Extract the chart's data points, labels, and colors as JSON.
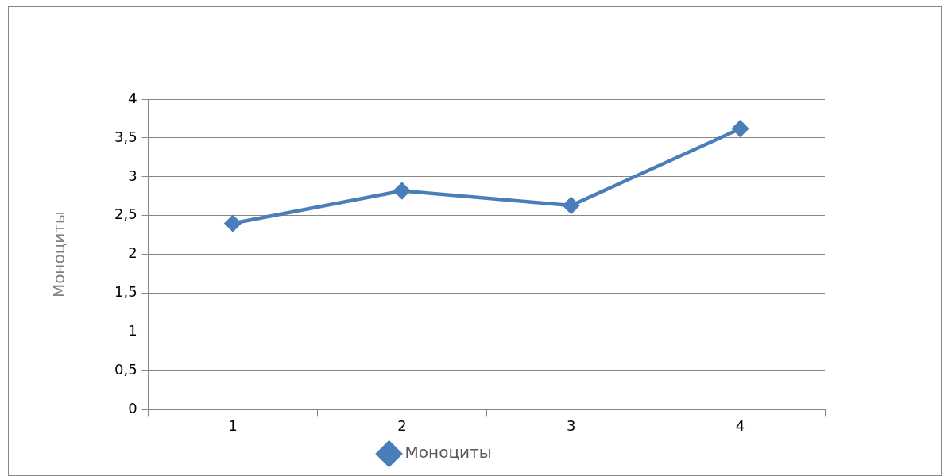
{
  "chart_data": {
    "type": "line",
    "ylabel": "Моноциты",
    "categories": [
      "1",
      "2",
      "3",
      "4"
    ],
    "series": [
      {
        "name": "Моноциты",
        "color": "#4a7ebb",
        "values": [
          2.4,
          2.82,
          2.63,
          3.62
        ]
      }
    ],
    "ylim": [
      0,
      4
    ],
    "yticks": [
      0,
      {
        "value": 0.5,
        "label": "0,5"
      },
      1,
      {
        "value": 1.5,
        "label": "1,5"
      },
      2,
      {
        "value": 2.5,
        "label": "2,5"
      },
      3,
      {
        "value": 3.5,
        "label": "3,5"
      },
      4
    ],
    "grid": "y",
    "legend": "bottom",
    "marker": "diamond",
    "line_style": "solid"
  }
}
